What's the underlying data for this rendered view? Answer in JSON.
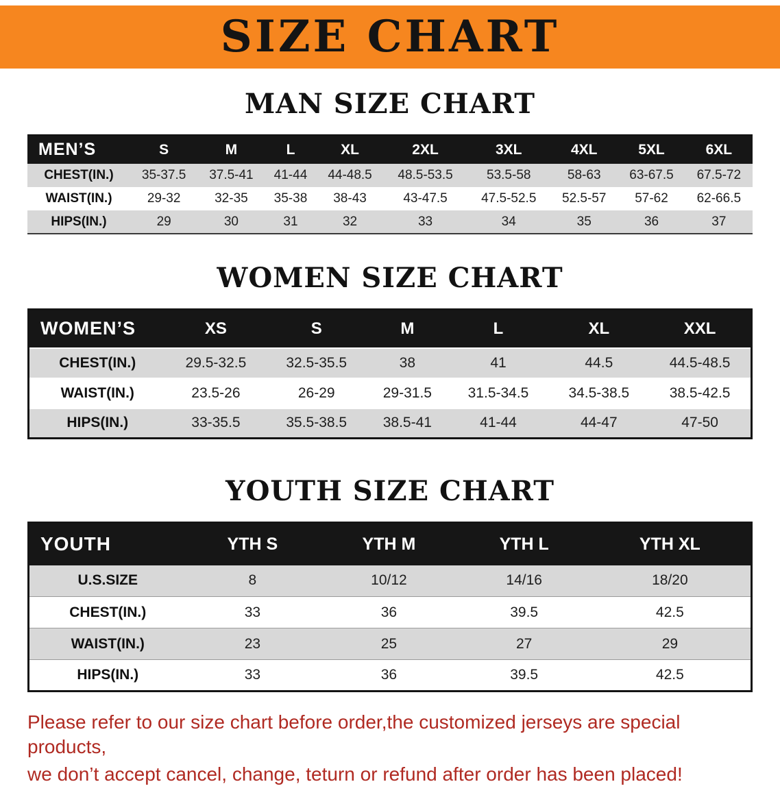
{
  "banner": {
    "title": "SIZE CHART"
  },
  "colors": {
    "banner_bg": "#f6861f",
    "table_header_bg": "#161616",
    "row_alt": "#d8d8d8",
    "notice_text": "#b02a22"
  },
  "sections": {
    "men": {
      "heading": "MAN SIZE CHART",
      "table": {
        "header": [
          "MEN’S",
          "S",
          "M",
          "L",
          "XL",
          "2XL",
          "3XL",
          "4XL",
          "5XL",
          "6XL"
        ],
        "rows": [
          {
            "label": "CHEST(IN.)",
            "values": [
              "35-37.5",
              "37.5-41",
              "41-44",
              "44-48.5",
              "48.5-53.5",
              "53.5-58",
              "58-63",
              "63-67.5",
              "67.5-72"
            ]
          },
          {
            "label": "WAIST(IN.)",
            "values": [
              "29-32",
              "32-35",
              "35-38",
              "38-43",
              "43-47.5",
              "47.5-52.5",
              "52.5-57",
              "57-62",
              "62-66.5"
            ]
          },
          {
            "label": "HIPS(IN.)",
            "values": [
              "29",
              "30",
              "31",
              "32",
              "33",
              "34",
              "35",
              "36",
              "37"
            ]
          }
        ]
      }
    },
    "women": {
      "heading": "WOMEN SIZE CHART",
      "table": {
        "header": [
          "WOMEN’S",
          "XS",
          "S",
          "M",
          "L",
          "XL",
          "XXL"
        ],
        "rows": [
          {
            "label": "CHEST(IN.)",
            "values": [
              "29.5-32.5",
              "32.5-35.5",
              "38",
              "41",
              "44.5",
              "44.5-48.5"
            ]
          },
          {
            "label": "WAIST(IN.)",
            "values": [
              "23.5-26",
              "26-29",
              "29-31.5",
              "31.5-34.5",
              "34.5-38.5",
              "38.5-42.5"
            ]
          },
          {
            "label": "HIPS(IN.)",
            "values": [
              "33-35.5",
              "35.5-38.5",
              "38.5-41",
              "41-44",
              "44-47",
              "47-50"
            ]
          }
        ]
      }
    },
    "youth": {
      "heading": "YOUTH SIZE CHART",
      "table": {
        "header": [
          "YOUTH",
          "YTH S",
          "YTH M",
          "YTH L",
          "YTH XL"
        ],
        "rows": [
          {
            "label": "U.S.SIZE",
            "values": [
              "8",
              "10/12",
              "14/16",
              "18/20"
            ]
          },
          {
            "label": "CHEST(IN.)",
            "values": [
              "33",
              "36",
              "39.5",
              "42.5"
            ]
          },
          {
            "label": "WAIST(IN.)",
            "values": [
              "23",
              "25",
              "27",
              "29"
            ]
          },
          {
            "label": "HIPS(IN.)",
            "values": [
              "33",
              "36",
              "39.5",
              "42.5"
            ]
          }
        ]
      }
    }
  },
  "footer": {
    "line1": "Please refer to our size chart before order,the customized jerseys are special products,",
    "line2": "we don’t accept cancel, change, teturn or refund after order has been placed!"
  }
}
